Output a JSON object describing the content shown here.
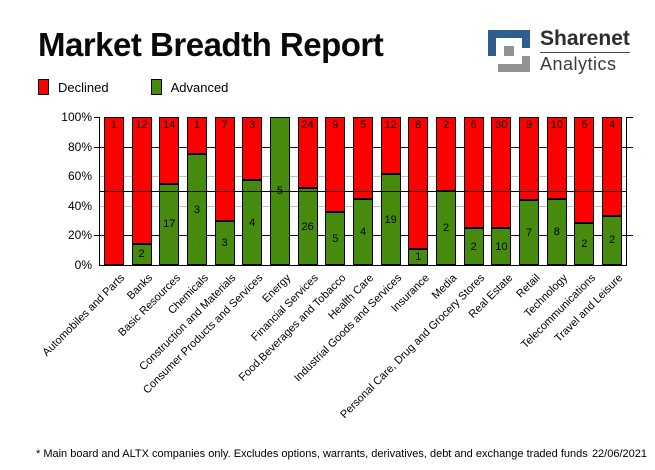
{
  "header": {
    "title": "Market Breadth Report",
    "logo": {
      "brand": "Sharenet",
      "sub": "Analytics",
      "blue": "#2e5e8e",
      "gray": "#909294"
    }
  },
  "legend": [
    {
      "label": "Declined",
      "color": "#ff0000"
    },
    {
      "label": "Advanced",
      "color": "#478b0e"
    }
  ],
  "chart_data": {
    "type": "bar",
    "stacked": true,
    "percent_stacked": true,
    "title": "Market Breadth Report",
    "categories": [
      "Automobiles and Parts",
      "Banks",
      "Basic Resources",
      "Chemicals",
      "Construction and Materials",
      "Consumer Products and Services",
      "Energy",
      "Financial Services",
      "Food,Beverages and Tobacco",
      "Health Care",
      "Industrial Goods and Services",
      "Insurance",
      "Media",
      "Personal Care, Drug and Grocery Stores",
      "Real Estate",
      "Retail",
      "Technology",
      "Telecommunications",
      "Travel and Leisure"
    ],
    "series": [
      {
        "name": "Declined",
        "color": "#ff0000",
        "values": [
          1,
          12,
          14,
          1,
          7,
          3,
          0,
          24,
          9,
          5,
          12,
          8,
          2,
          6,
          30,
          9,
          10,
          5,
          4
        ]
      },
      {
        "name": "Advanced",
        "color": "#478b0e",
        "values": [
          0,
          2,
          17,
          3,
          3,
          4,
          5,
          26,
          5,
          4,
          19,
          1,
          2,
          2,
          10,
          7,
          8,
          2,
          2
        ]
      }
    ],
    "ylim": [
      0,
      100
    ],
    "yticks": [
      "100%",
      "80%",
      "60%",
      "40%",
      "20%",
      "0%"
    ],
    "ytick_values": [
      100,
      80,
      60,
      40,
      20,
      0
    ],
    "gridlines": {
      "navy": [
        80,
        20
      ],
      "silver": [
        60,
        40
      ],
      "black": [
        50
      ]
    },
    "grid_colors": {
      "navy": "#000080",
      "silver": "#c0c0c0",
      "black": "#000000"
    },
    "legend_position": "top-left"
  },
  "footer": {
    "note": "* Main board and ALTX companies only. Excludes options, warrants, derivatives, debt and exchange traded funds",
    "date": "22/06/2021"
  }
}
